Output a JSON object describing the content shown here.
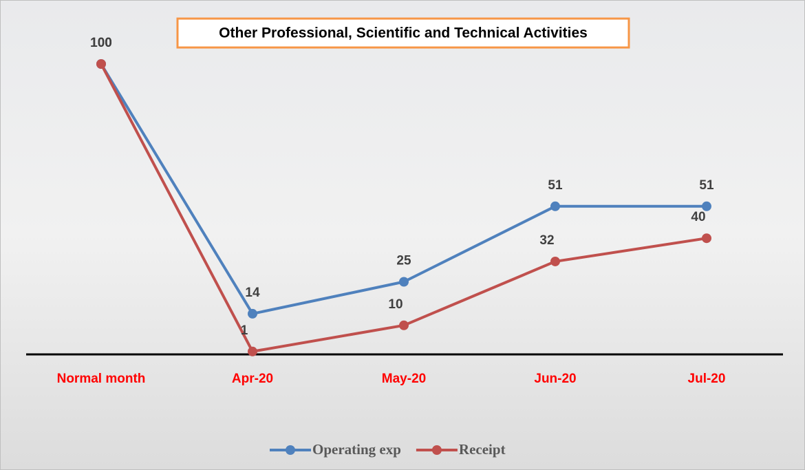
{
  "chart_data": {
    "type": "line",
    "title": "Other Professional, Scientific and Technical Activities",
    "categories": [
      "Normal month",
      "Apr-20",
      "May-20",
      "Jun-20",
      "Jul-20"
    ],
    "series": [
      {
        "name": "Operating exp",
        "color": "#4f81bd",
        "values": [
          100,
          14,
          25,
          51,
          51
        ]
      },
      {
        "name": "Receipt",
        "color": "#c0504d",
        "values": [
          100,
          1,
          10,
          32,
          40
        ]
      }
    ],
    "ylim": [
      0,
      100
    ],
    "category_color": "#ff0000",
    "legend": "bottom"
  }
}
